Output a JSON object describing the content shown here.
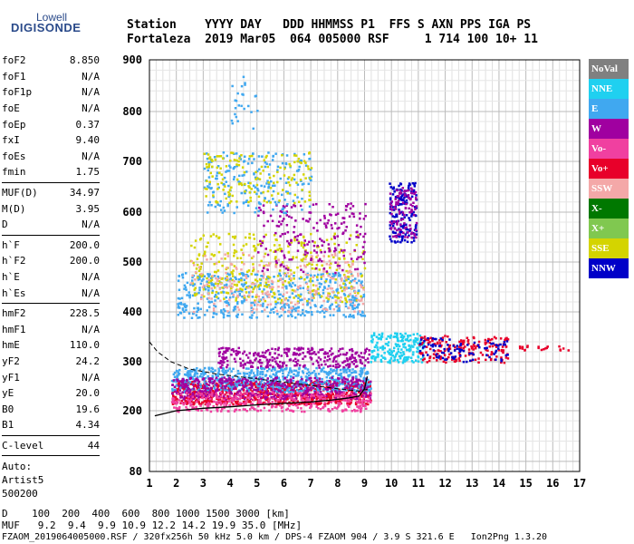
{
  "logo": {
    "top": "Lowell",
    "main": "DIGISONDE"
  },
  "header": {
    "line1": "Station    YYYY DAY   DDD HHMMSS P1  FFS S AXN PPS IGA PS",
    "line2": "Fortaleza  2019 Mar05  064 005000 RSF     1 714 100 10+ 11"
  },
  "params": [
    {
      "label": "foF2",
      "value": "8.850"
    },
    {
      "label": "foF1",
      "value": "N/A"
    },
    {
      "label": "foF1p",
      "value": "N/A"
    },
    {
      "label": "foE",
      "value": "N/A"
    },
    {
      "label": "foEp",
      "value": "0.37"
    },
    {
      "label": "fxI",
      "value": "9.40"
    },
    {
      "label": "foEs",
      "value": "N/A"
    },
    {
      "label": "fmin",
      "value": "1.75"
    },
    {
      "label": "MUF(D)",
      "value": "34.97",
      "sep": true
    },
    {
      "label": "M(D)",
      "value": "3.95"
    },
    {
      "label": "D",
      "value": "N/A"
    },
    {
      "label": "h`F",
      "value": "200.0",
      "sep": true
    },
    {
      "label": "h`F2",
      "value": "200.0"
    },
    {
      "label": "h`E",
      "value": "N/A"
    },
    {
      "label": "h`Es",
      "value": "N/A"
    },
    {
      "label": "hmF2",
      "value": "228.5",
      "sep": true
    },
    {
      "label": "hmF1",
      "value": "N/A"
    },
    {
      "label": "hmE",
      "value": "110.0"
    },
    {
      "label": "yF2",
      "value": "24.2"
    },
    {
      "label": "yF1",
      "value": "N/A"
    },
    {
      "label": "yE",
      "value": "20.0"
    },
    {
      "label": "B0",
      "value": "19.6"
    },
    {
      "label": "B1",
      "value": "4.34"
    },
    {
      "label": "C-level",
      "value": "44",
      "sep": true
    }
  ],
  "auto": {
    "line1": "Auto:",
    "line2": "Artist5",
    "line3": "500200"
  },
  "legend": [
    {
      "label": "NoVal",
      "color": "#808080"
    },
    {
      "label": "NNE",
      "color": "#1fd0f0"
    },
    {
      "label": "E",
      "color": "#40a8f0"
    },
    {
      "label": "W",
      "color": "#a000a0"
    },
    {
      "label": "Vo-",
      "color": "#f040a0"
    },
    {
      "label": "Vo+",
      "color": "#e8002a"
    },
    {
      "label": "SSW",
      "color": "#f4a8a8"
    },
    {
      "label": "X-",
      "color": "#007800"
    },
    {
      "label": "X+",
      "color": "#80c850"
    },
    {
      "label": "SSE",
      "color": "#d4d400"
    },
    {
      "label": "NNW",
      "color": "#0000c8"
    }
  ],
  "footer": {
    "d_line": "D    100  200  400  600  800 1000 1500 3000 [km]",
    "muf_line": "MUF   9.2  9.4  9.9 10.9 12.2 14.2 19.9 35.0 [MHz]",
    "file_line": "FZAOM_2019064005000.RSF / 320fx256h 50 kHz 5.0 km / DPS-4 FZAOM 904 / 3.9 S 321.6 E   Ion2Png 1.3.20"
  },
  "chart_data": {
    "type": "scatter",
    "title": "",
    "xlabel": "",
    "ylabel": "",
    "xlim": [
      1,
      17
    ],
    "ylim": [
      80,
      900
    ],
    "xticks": [
      1,
      2,
      3,
      4,
      5,
      6,
      7,
      8,
      9,
      10,
      11,
      12,
      13,
      14,
      15,
      16,
      17
    ],
    "yticks": [
      80,
      200,
      300,
      400,
      500,
      600,
      700,
      800,
      900
    ],
    "grid": true,
    "trace": {
      "x": [
        1.2,
        2,
        3,
        4,
        5,
        6,
        7,
        7.8,
        8.4,
        8.8,
        9.0,
        9.1
      ],
      "y": [
        190,
        200,
        205,
        208,
        212,
        215,
        218,
        222,
        226,
        230,
        245,
        270
      ]
    },
    "dashed_trace": {
      "x": [
        1.0,
        1.3,
        1.8,
        2.5,
        3.5,
        5,
        6.5,
        8,
        8.8,
        9.2
      ],
      "y": [
        340,
        320,
        300,
        285,
        275,
        265,
        255,
        245,
        240,
        245
      ]
    },
    "clusters": [
      {
        "x": [
          1.8,
          9.2
        ],
        "y": [
          215,
          262
        ],
        "color": "#e8002a",
        "n": 900
      },
      {
        "x": [
          1.8,
          9.2
        ],
        "y": [
          240,
          290
        ],
        "color": "#40a8f0",
        "n": 600
      },
      {
        "x": [
          1.8,
          9.2
        ],
        "y": [
          225,
          270
        ],
        "color": "#a000a0",
        "n": 450
      },
      {
        "x": [
          1.8,
          9.2
        ],
        "y": [
          200,
          240
        ],
        "color": "#f040a0",
        "n": 350
      },
      {
        "x": [
          3.5,
          9.2
        ],
        "y": [
          290,
          330
        ],
        "color": "#a000a0",
        "n": 300
      },
      {
        "x": [
          2.0,
          9.0
        ],
        "y": [
          390,
          480
        ],
        "color": "#40a8f0",
        "n": 500
      },
      {
        "x": [
          2.5,
          9.0
        ],
        "y": [
          420,
          560
        ],
        "color": "#d4d400",
        "n": 350
      },
      {
        "x": [
          2.5,
          9.0
        ],
        "y": [
          400,
          520
        ],
        "color": "#f4a8a8",
        "n": 250
      },
      {
        "x": [
          5.0,
          9.0
        ],
        "y": [
          480,
          620
        ],
        "color": "#a000a0",
        "n": 200
      },
      {
        "x": [
          3.0,
          7.0
        ],
        "y": [
          600,
          720
        ],
        "color": "#40a8f0",
        "n": 200
      },
      {
        "x": [
          3.0,
          7.0
        ],
        "y": [
          620,
          720
        ],
        "color": "#d4d400",
        "n": 150
      },
      {
        "x": [
          9.9,
          10.9
        ],
        "y": [
          540,
          660
        ],
        "color": "#0000c8",
        "n": 150
      },
      {
        "x": [
          9.9,
          10.9
        ],
        "y": [
          550,
          650
        ],
        "color": "#a000a0",
        "n": 100
      },
      {
        "x": [
          9.2,
          11.2
        ],
        "y": [
          300,
          360
        ],
        "color": "#1fd0f0",
        "n": 200
      },
      {
        "x": [
          11,
          14.3
        ],
        "y": [
          300,
          355
        ],
        "color": "#e8002a",
        "n": 180
      },
      {
        "x": [
          11,
          14.3
        ],
        "y": [
          300,
          350
        ],
        "color": "#0000c8",
        "n": 90
      },
      {
        "x": [
          4.0,
          5.0
        ],
        "y": [
          760,
          870
        ],
        "color": "#40a8f0",
        "n": 25
      },
      {
        "x": [
          14.5,
          16.8
        ],
        "y": [
          325,
          335
        ],
        "color": "#e8002a",
        "n": 20
      }
    ]
  }
}
